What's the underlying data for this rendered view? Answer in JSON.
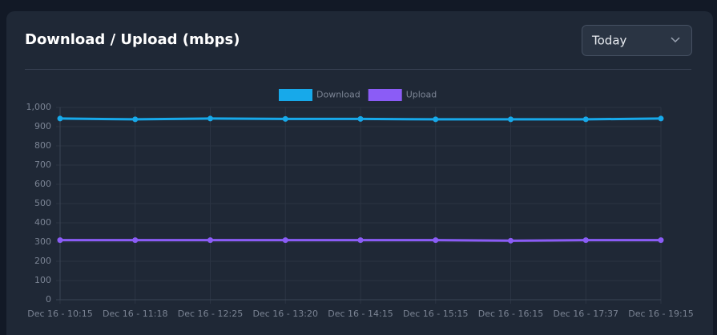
{
  "header": {
    "title": "Download / Upload (mbps)",
    "dropdown": "Today"
  },
  "chart_data": {
    "type": "line",
    "categories": [
      "Dec 16 - 10:15",
      "Dec 16 - 11:18",
      "Dec 16 - 12:25",
      "Dec 16 - 13:20",
      "Dec 16 - 14:15",
      "Dec 16 - 15:15",
      "Dec 16 - 16:15",
      "Dec 16 - 17:37",
      "Dec 16 - 19:15"
    ],
    "series": [
      {
        "name": "Download",
        "color": "#17a9ea",
        "values": [
          942,
          938,
          942,
          940,
          940,
          938,
          938,
          938,
          942
        ]
      },
      {
        "name": "Upload",
        "color": "#8b5cf6",
        "values": [
          310,
          310,
          310,
          310,
          310,
          310,
          307,
          310,
          310
        ]
      }
    ],
    "ylim": [
      0,
      1000
    ],
    "yticks": [
      0,
      100,
      200,
      300,
      400,
      500,
      600,
      700,
      800,
      900,
      {
        "value": 1000,
        "label": "1,000"
      }
    ],
    "grid": true,
    "legend": "top"
  }
}
